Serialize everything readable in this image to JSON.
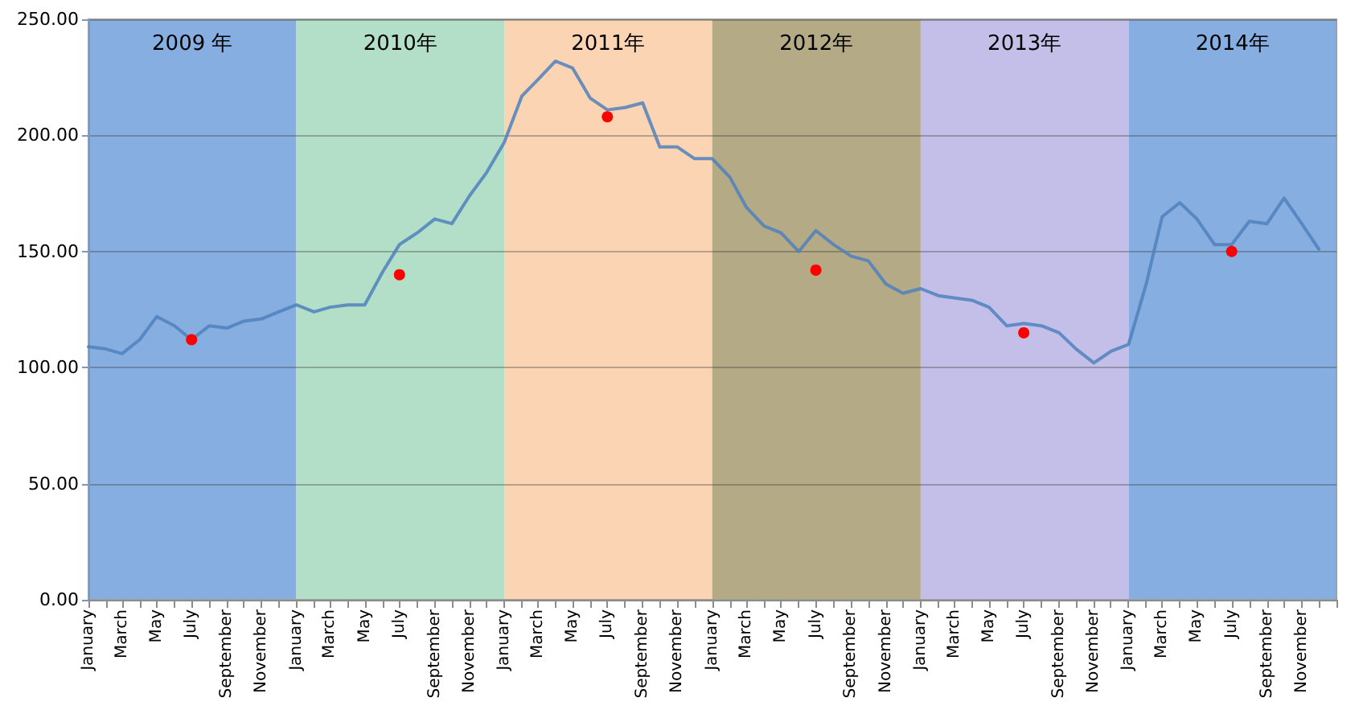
{
  "chart_data": {
    "type": "line",
    "x": [
      "2009-01",
      "2009-02",
      "2009-03",
      "2009-04",
      "2009-05",
      "2009-06",
      "2009-07",
      "2009-08",
      "2009-09",
      "2009-10",
      "2009-11",
      "2009-12",
      "2010-01",
      "2010-02",
      "2010-03",
      "2010-04",
      "2010-05",
      "2010-06",
      "2010-07",
      "2010-08",
      "2010-09",
      "2010-10",
      "2010-11",
      "2010-12",
      "2011-01",
      "2011-02",
      "2011-03",
      "2011-04",
      "2011-05",
      "2011-06",
      "2011-07",
      "2011-08",
      "2011-09",
      "2011-10",
      "2011-11",
      "2011-12",
      "2012-01",
      "2012-02",
      "2012-03",
      "2012-04",
      "2012-05",
      "2012-06",
      "2012-07",
      "2012-08",
      "2012-09",
      "2012-10",
      "2012-11",
      "2012-12",
      "2013-01",
      "2013-02",
      "2013-03",
      "2013-04",
      "2013-05",
      "2013-06",
      "2013-07",
      "2013-08",
      "2013-09",
      "2013-10",
      "2013-11",
      "2013-12",
      "2014-01",
      "2014-02",
      "2014-03",
      "2014-04",
      "2014-05",
      "2014-06",
      "2014-07",
      "2014-08",
      "2014-09",
      "2014-10",
      "2014-11",
      "2014-12"
    ],
    "series": [
      {
        "color": "#4f81bd",
        "values": [
          109,
          108,
          106,
          112,
          122,
          118,
          112,
          118,
          117,
          120,
          121,
          124,
          127,
          124,
          126,
          127,
          127,
          141,
          153,
          158,
          164,
          162,
          174,
          184,
          197,
          217,
          224,
          232,
          229,
          216,
          211,
          212,
          214,
          195,
          195,
          190,
          190,
          182,
          169,
          161,
          158,
          150,
          159,
          153,
          148,
          146,
          136,
          132,
          134,
          131,
          130,
          129,
          126,
          118,
          119,
          118,
          115,
          108,
          102,
          107,
          110,
          136,
          165,
          171,
          164,
          153,
          153,
          163,
          162,
          173,
          162,
          151
        ]
      },
      {
        "type": "scatter",
        "marker": "circle",
        "color": "#ff0000",
        "x": [
          "2009-07",
          "2010-07",
          "2011-07",
          "2012-07",
          "2013-07",
          "2014-07"
        ],
        "values": [
          112,
          140,
          208,
          142,
          115,
          150
        ]
      }
    ],
    "xlim": [
      "2009-01",
      "2015-01"
    ],
    "xticks": [
      {
        "value": "2009-01",
        "label": "January"
      },
      {
        "value": "2009-02",
        "label": null
      },
      {
        "value": "2009-03",
        "label": "March"
      },
      {
        "value": "2009-04",
        "label": null
      },
      {
        "value": "2009-05",
        "label": "May"
      },
      {
        "value": "2009-06",
        "label": null
      },
      {
        "value": "2009-07",
        "label": "July"
      },
      {
        "value": "2009-08",
        "label": null
      },
      {
        "value": "2009-09",
        "label": "September"
      },
      {
        "value": "2009-10",
        "label": null
      },
      {
        "value": "2009-11",
        "label": "November"
      },
      {
        "value": "2009-12",
        "label": null
      },
      {
        "value": "2010-01",
        "label": "January"
      },
      {
        "value": "2010-02",
        "label": null
      },
      {
        "value": "2010-03",
        "label": "March"
      },
      {
        "value": "2010-04",
        "label": null
      },
      {
        "value": "2010-05",
        "label": "May"
      },
      {
        "value": "2010-06",
        "label": null
      },
      {
        "value": "2010-07",
        "label": "July"
      },
      {
        "value": "2010-08",
        "label": null
      },
      {
        "value": "2010-09",
        "label": "September"
      },
      {
        "value": "2010-10",
        "label": null
      },
      {
        "value": "2010-11",
        "label": "November"
      },
      {
        "value": "2010-12",
        "label": null
      },
      {
        "value": "2011-01",
        "label": "January"
      },
      {
        "value": "2011-02",
        "label": null
      },
      {
        "value": "2011-03",
        "label": "March"
      },
      {
        "value": "2011-04",
        "label": null
      },
      {
        "value": "2011-05",
        "label": "May"
      },
      {
        "value": "2011-06",
        "label": null
      },
      {
        "value": "2011-07",
        "label": "July"
      },
      {
        "value": "2011-08",
        "label": null
      },
      {
        "value": "2011-09",
        "label": "September"
      },
      {
        "value": "2011-10",
        "label": null
      },
      {
        "value": "2011-11",
        "label": "November"
      },
      {
        "value": "2011-12",
        "label": null
      },
      {
        "value": "2012-01",
        "label": "January"
      },
      {
        "value": "2012-02",
        "label": null
      },
      {
        "value": "2012-03",
        "label": "March"
      },
      {
        "value": "2012-04",
        "label": null
      },
      {
        "value": "2012-05",
        "label": "May"
      },
      {
        "value": "2012-06",
        "label": null
      },
      {
        "value": "2012-07",
        "label": "July"
      },
      {
        "value": "2012-08",
        "label": null
      },
      {
        "value": "2012-09",
        "label": "September"
      },
      {
        "value": "2012-10",
        "label": null
      },
      {
        "value": "2012-11",
        "label": "November"
      },
      {
        "value": "2012-12",
        "label": null
      },
      {
        "value": "2013-01",
        "label": "January"
      },
      {
        "value": "2013-02",
        "label": null
      },
      {
        "value": "2013-03",
        "label": "March"
      },
      {
        "value": "2013-04",
        "label": null
      },
      {
        "value": "2013-05",
        "label": "May"
      },
      {
        "value": "2013-06",
        "label": null
      },
      {
        "value": "2013-07",
        "label": "July"
      },
      {
        "value": "2013-08",
        "label": null
      },
      {
        "value": "2013-09",
        "label": "September"
      },
      {
        "value": "2013-10",
        "label": null
      },
      {
        "value": "2013-11",
        "label": "November"
      },
      {
        "value": "2013-12",
        "label": null
      },
      {
        "value": "2014-01",
        "label": "January"
      },
      {
        "value": "2014-02",
        "label": null
      },
      {
        "value": "2014-03",
        "label": "March"
      },
      {
        "value": "2014-04",
        "label": null
      },
      {
        "value": "2014-05",
        "label": "May"
      },
      {
        "value": "2014-06",
        "label": null
      },
      {
        "value": "2014-07",
        "label": "July"
      },
      {
        "value": "2014-08",
        "label": null
      },
      {
        "value": "2014-09",
        "label": "September"
      },
      {
        "value": "2014-10",
        "label": null
      },
      {
        "value": "2014-11",
        "label": "November"
      },
      {
        "value": "2014-12",
        "label": null
      },
      {
        "value": "2015-01",
        "label": null
      }
    ],
    "ylim": [
      0,
      250
    ],
    "yticks": [
      {
        "value": 0,
        "label": "0.00"
      },
      {
        "value": 50,
        "label": "50.00"
      },
      {
        "value": 100,
        "label": "100.00"
      },
      {
        "value": 150,
        "label": "150.00"
      },
      {
        "value": 200,
        "label": "200.00"
      },
      {
        "value": 250,
        "label": "250.00"
      }
    ],
    "grid": "y",
    "marker": "none",
    "line_style": "solid",
    "bands": [
      {
        "axis": "x",
        "from": "2009-01",
        "to": "2010-01",
        "label": "2009 年",
        "color": "#86aee0"
      },
      {
        "axis": "x",
        "from": "2010-01",
        "to": "2011-01",
        "label": "2010年",
        "color": "#b3dec8"
      },
      {
        "axis": "x",
        "from": "2011-01",
        "to": "2012-01",
        "label": "2011年",
        "color": "#fbd4b4"
      },
      {
        "axis": "x",
        "from": "2012-01",
        "to": "2013-01",
        "label": "2012年",
        "color": "#b4aa86"
      },
      {
        "axis": "x",
        "from": "2013-01",
        "to": "2014-01",
        "label": "2013年",
        "color": "#c3bfe8"
      },
      {
        "axis": "x",
        "from": "2014-01",
        "to": "2015-01",
        "label": "2014年",
        "color": "#86aee0"
      }
    ]
  }
}
